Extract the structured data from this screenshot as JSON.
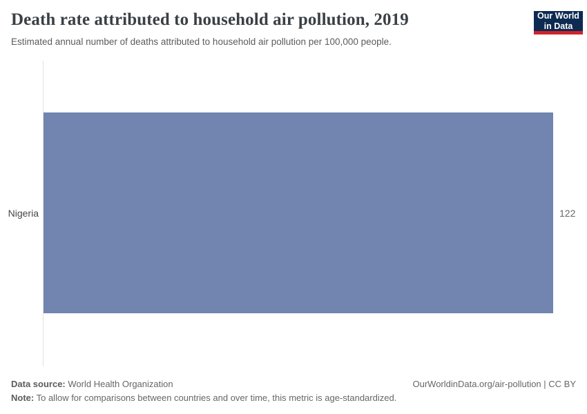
{
  "header": {
    "title": "Death rate attributed to household air pollution, 2019",
    "subtitle": "Estimated annual number of deaths attributed to household air pollution per 100,000 people.",
    "logo": {
      "line1": "Our World",
      "line2": "in Data",
      "bg_color": "#0d2a52",
      "stripe_color": "#d1232a"
    }
  },
  "chart_data": {
    "type": "bar",
    "orientation": "horizontal",
    "title": "Death rate attributed to household air pollution, 2019",
    "subtitle": "Estimated annual number of deaths attributed to household air pollution per 100,000 people.",
    "categories": [
      "Nigeria"
    ],
    "values": [
      122
    ],
    "value_labels": [
      "122"
    ],
    "xlim": [
      0,
      122
    ],
    "grid": false,
    "bar_color": "#7285b0",
    "axis_color": "#e2e2e2"
  },
  "footer": {
    "datasource_label": "Data source:",
    "datasource_value": "World Health Organization",
    "note_label": "Note:",
    "note_value": "To allow for comparisons between countries and over time, this metric is age-standardized.",
    "license": "OurWorldinData.org/air-pollution | CC BY"
  }
}
